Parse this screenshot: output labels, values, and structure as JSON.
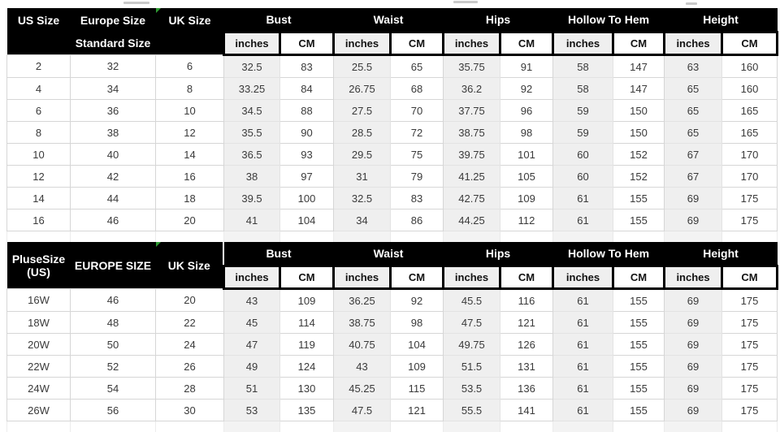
{
  "colors": {
    "header_bg": "#000000",
    "header_text": "#ffffff",
    "shaded_column_bg": "#efefef",
    "cell_bg": "#ffffff",
    "grid_border": "#d6d6d6",
    "data_text": "#3a3a3a",
    "excel_flag_green": "#2e9b33"
  },
  "icons": {
    "excel_error_flag": "green-corner-triangle"
  },
  "chart_data": [
    {
      "type": "table",
      "size_columns": [
        "US Size",
        "Europe Size",
        "UK Size"
      ],
      "size_subheader": "Standard Size",
      "measure_columns": [
        "Bust",
        "Waist",
        "Hips",
        "Hollow To Hem",
        "Height"
      ],
      "unit_labels": [
        "inches",
        "CM"
      ],
      "rows": [
        [
          "2",
          "32",
          "6",
          "32.5",
          "83",
          "25.5",
          "65",
          "35.75",
          "91",
          "58",
          "147",
          "63",
          "160"
        ],
        [
          "4",
          "34",
          "8",
          "33.25",
          "84",
          "26.75",
          "68",
          "36.2",
          "92",
          "58",
          "147",
          "65",
          "160"
        ],
        [
          "6",
          "36",
          "10",
          "34.5",
          "88",
          "27.5",
          "70",
          "37.75",
          "96",
          "59",
          "150",
          "65",
          "165"
        ],
        [
          "8",
          "38",
          "12",
          "35.5",
          "90",
          "28.5",
          "72",
          "38.75",
          "98",
          "59",
          "150",
          "65",
          "165"
        ],
        [
          "10",
          "40",
          "14",
          "36.5",
          "93",
          "29.5",
          "75",
          "39.75",
          "101",
          "60",
          "152",
          "67",
          "170"
        ],
        [
          "12",
          "42",
          "16",
          "38",
          "97",
          "31",
          "79",
          "41.25",
          "105",
          "60",
          "152",
          "67",
          "170"
        ],
        [
          "14",
          "44",
          "18",
          "39.5",
          "100",
          "32.5",
          "83",
          "42.75",
          "109",
          "61",
          "155",
          "69",
          "175"
        ],
        [
          "16",
          "46",
          "20",
          "41",
          "104",
          "34",
          "86",
          "44.25",
          "112",
          "61",
          "155",
          "69",
          "175"
        ]
      ]
    },
    {
      "type": "table",
      "size_columns": [
        "PluseSize (US)",
        "EUROPE SIZE",
        "UK Size"
      ],
      "size_column1_lines": [
        "PluseSize",
        "(US)"
      ],
      "measure_columns": [
        "Bust",
        "Waist",
        "Hips",
        "Hollow To Hem",
        "Height"
      ],
      "unit_labels": [
        "inches",
        "CM"
      ],
      "rows": [
        [
          "16W",
          "46",
          "20",
          "43",
          "109",
          "36.25",
          "92",
          "45.5",
          "116",
          "61",
          "155",
          "69",
          "175"
        ],
        [
          "18W",
          "48",
          "22",
          "45",
          "114",
          "38.75",
          "98",
          "47.5",
          "121",
          "61",
          "155",
          "69",
          "175"
        ],
        [
          "20W",
          "50",
          "24",
          "47",
          "119",
          "40.75",
          "104",
          "49.75",
          "126",
          "61",
          "155",
          "69",
          "175"
        ],
        [
          "22W",
          "52",
          "26",
          "49",
          "124",
          "43",
          "109",
          "51.5",
          "131",
          "61",
          "155",
          "69",
          "175"
        ],
        [
          "24W",
          "54",
          "28",
          "51",
          "130",
          "45.25",
          "115",
          "53.5",
          "136",
          "61",
          "155",
          "69",
          "175"
        ],
        [
          "26W",
          "56",
          "30",
          "53",
          "135",
          "47.5",
          "121",
          "55.5",
          "141",
          "61",
          "155",
          "69",
          "175"
        ]
      ]
    }
  ]
}
